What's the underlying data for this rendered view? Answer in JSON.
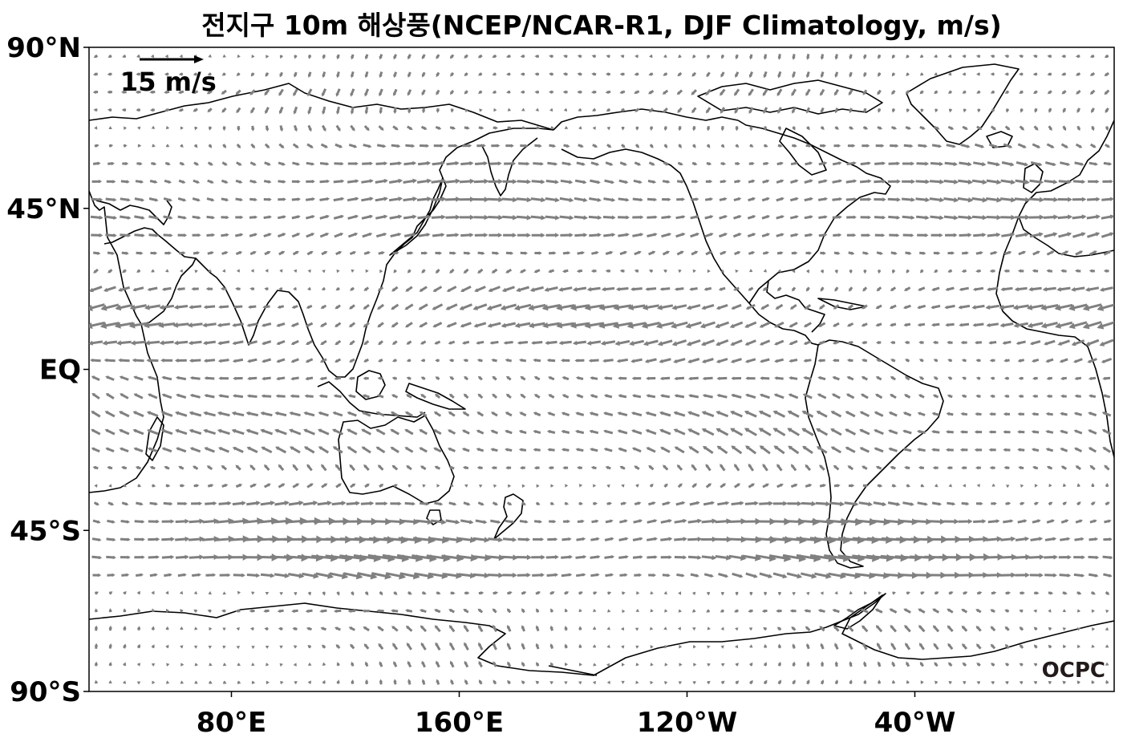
{
  "chart_data": {
    "type": "vector-field",
    "title": "전지구 10m 해상풍(NCEP/NCAR-R1, DJF Climatology, m/s)",
    "xlabel": "",
    "ylabel": "",
    "xlim": [
      30,
      390
    ],
    "ylim": [
      -90,
      90
    ],
    "x_ticks": [
      {
        "lon": 80,
        "label": "80°E"
      },
      {
        "lon": 160,
        "label": "160°E"
      },
      {
        "lon": 240,
        "label": "120°W"
      },
      {
        "lon": 320,
        "label": "40°W"
      }
    ],
    "y_ticks": [
      {
        "lat": 90,
        "label": "90°N"
      },
      {
        "lat": 45,
        "label": "45°N"
      },
      {
        "lat": 0,
        "label": "EQ"
      },
      {
        "lat": -45,
        "label": "45°S"
      },
      {
        "lat": -90,
        "label": "90°S"
      }
    ],
    "reference_vector": {
      "speed": 15,
      "label": "15 m/s",
      "placement": "top-left"
    },
    "arrow_color": "#808080",
    "grid": false,
    "coastlines": true,
    "wind_bands": [
      {
        "lat": 85,
        "u": -1,
        "v": -1
      },
      {
        "lat": 75,
        "u": -2,
        "v": -2
      },
      {
        "lat": 65,
        "u": 2,
        "v": -1
      },
      {
        "lat": 55,
        "u": 5,
        "v": 0
      },
      {
        "lat": 45,
        "u": 6,
        "v": 0
      },
      {
        "lat": 35,
        "u": 5,
        "v": 1
      },
      {
        "lat": 25,
        "u": -3,
        "v": -1
      },
      {
        "lat": 15,
        "u": -7,
        "v": -2
      },
      {
        "lat": 5,
        "u": -4,
        "v": -1
      },
      {
        "lat": -5,
        "u": -3,
        "v": 1
      },
      {
        "lat": -15,
        "u": -5,
        "v": 2
      },
      {
        "lat": -25,
        "u": -4,
        "v": 2
      },
      {
        "lat": -35,
        "u": 3,
        "v": 0
      },
      {
        "lat": -45,
        "u": 9,
        "v": 0
      },
      {
        "lat": -55,
        "u": 10,
        "v": -1
      },
      {
        "lat": -65,
        "u": -2,
        "v": 0
      },
      {
        "lat": -75,
        "u": -1,
        "v": 2
      },
      {
        "lat": -85,
        "u": 0,
        "v": 1
      }
    ],
    "credit": "OCPC"
  }
}
